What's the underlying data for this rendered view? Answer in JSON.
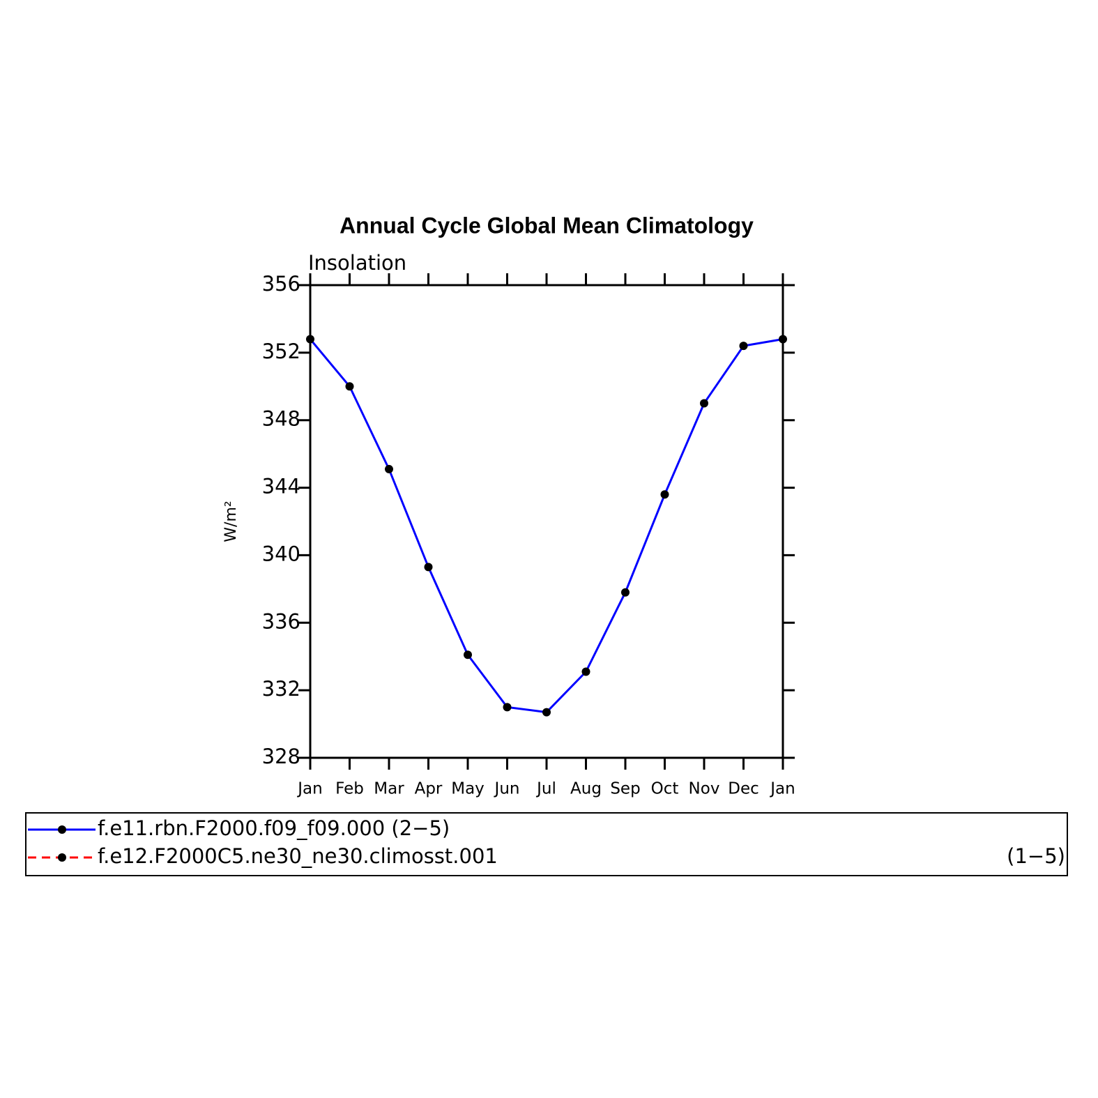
{
  "chart_data": {
    "type": "line",
    "title": "Annual Cycle Global Mean Climatology",
    "subtitle": "Insolation",
    "y_label": "W/m²",
    "categories": [
      "Jan",
      "Feb",
      "Mar",
      "Apr",
      "May",
      "Jun",
      "Jul",
      "Aug",
      "Sep",
      "Oct",
      "Nov",
      "Dec",
      "Jan"
    ],
    "series": [
      {
        "name": "f.e11.rbn.F2000.f09_f09.000 (2−5)",
        "color": "#0000ff",
        "dash": false,
        "values": [
          352.8,
          350.0,
          345.1,
          339.3,
          334.1,
          331.0,
          330.7,
          333.1,
          337.8,
          343.6,
          349.0,
          352.4,
          352.8
        ]
      },
      {
        "name": "f.e12.F2000C5.ne30_ne30.climosst.001",
        "name_suffix": "(1−5)",
        "color": "#ff0000",
        "dash": true,
        "values": [
          null,
          null,
          null,
          null,
          null,
          null,
          null,
          null,
          null,
          null,
          null,
          null,
          null
        ]
      }
    ],
    "marker_color": "#000000",
    "ylim": [
      328,
      356
    ],
    "yticks": [
      328,
      332,
      336,
      340,
      344,
      348,
      352,
      356
    ],
    "grid": false
  }
}
